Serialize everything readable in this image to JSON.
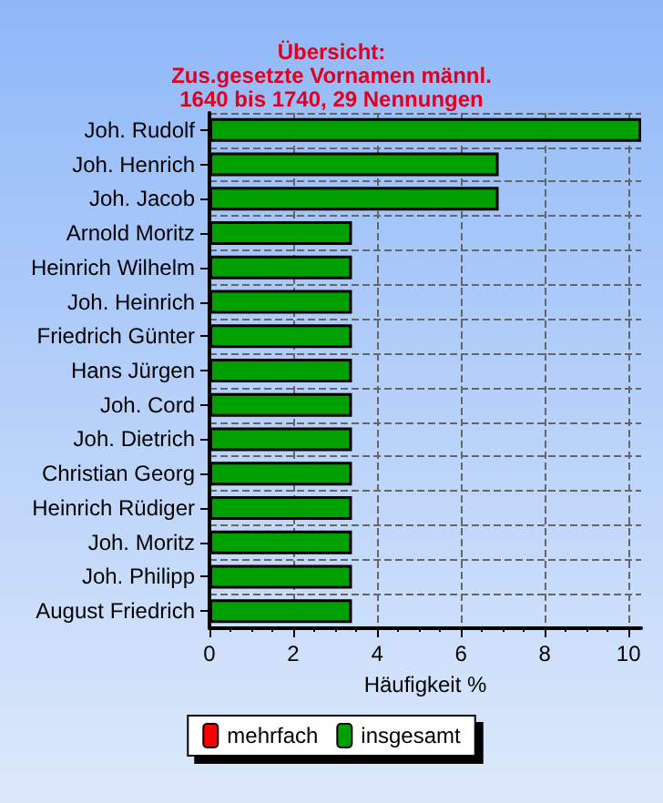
{
  "chart_data": {
    "type": "bar",
    "orientation": "horizontal",
    "title": "Übersicht:\nZus.gesetzte Vornamen männl.\n1640 bis 1740, 29 Nennungen",
    "xlabel": "Häufigkeit %",
    "categories": [
      "Joh. Rudolf",
      "Joh. Henrich",
      "Joh. Jacob",
      "Arnold Moritz",
      "Heinrich Wilhelm",
      "Joh. Heinrich",
      "Friedrich Günter",
      "Hans Jürgen",
      "Joh. Cord",
      "Joh. Dietrich",
      "Christian Georg",
      "Heinrich Rüdiger",
      "Joh. Moritz",
      "Joh. Philipp",
      "August Friedrich"
    ],
    "series": [
      {
        "name": "mehrfach",
        "color": "#ff0000",
        "values": [
          null,
          null,
          null,
          null,
          null,
          null,
          null,
          null,
          null,
          null,
          null,
          null,
          null,
          null,
          null
        ]
      },
      {
        "name": "insgesamt",
        "color": "#00a000",
        "values": [
          10.3,
          6.9,
          6.9,
          3.4,
          3.4,
          3.4,
          3.4,
          3.4,
          3.4,
          3.4,
          3.4,
          3.4,
          3.4,
          3.4,
          3.4
        ]
      }
    ],
    "xlim": [
      0,
      10.3
    ],
    "xticks": [
      0,
      2,
      4,
      6,
      8,
      10
    ],
    "grid": true,
    "legend": "bottom"
  }
}
